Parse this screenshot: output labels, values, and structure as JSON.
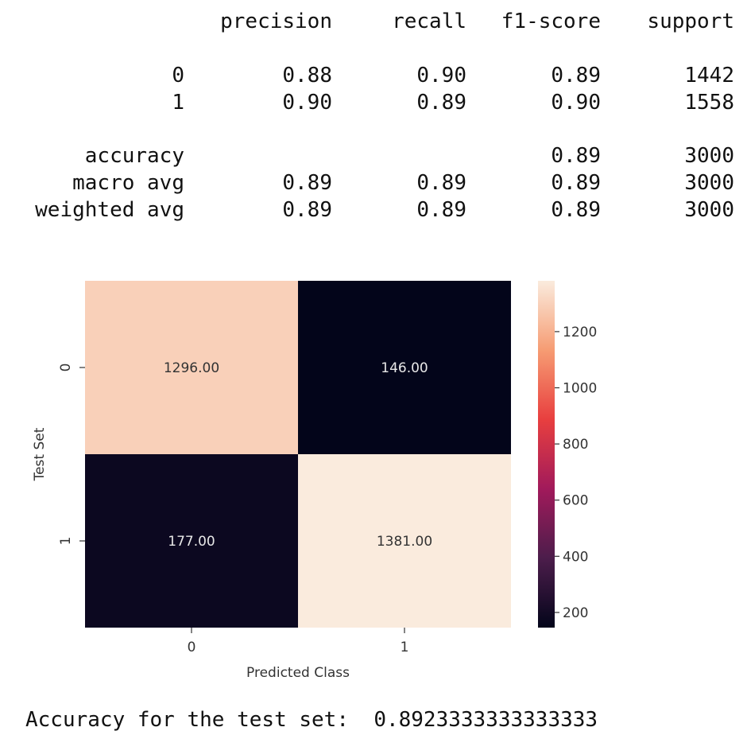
{
  "report": {
    "headers": [
      "precision",
      "recall",
      "f1-score",
      "support"
    ],
    "rows": [
      {
        "label": "0",
        "values": [
          "0.88",
          "0.90",
          "0.89",
          "1442"
        ]
      },
      {
        "label": "1",
        "values": [
          "0.90",
          "0.89",
          "0.90",
          "1558"
        ]
      },
      {
        "label": "accuracy",
        "values": [
          "",
          "",
          "0.89",
          "3000"
        ]
      },
      {
        "label": "macro avg",
        "values": [
          "0.89",
          "0.89",
          "0.89",
          "3000"
        ]
      },
      {
        "label": "weighted avg",
        "values": [
          "0.89",
          "0.89",
          "0.89",
          "3000"
        ]
      }
    ]
  },
  "accuracy_line": {
    "label": "Accuracy for the test set:",
    "value": "0.8923333333333333"
  },
  "chart_data": {
    "type": "heatmap",
    "xlabel": "Predicted Class",
    "ylabel": "Test Set",
    "x_categories": [
      "0",
      "1"
    ],
    "y_categories": [
      "0",
      "1"
    ],
    "matrix": [
      [
        1296,
        146
      ],
      [
        177,
        1381
      ]
    ],
    "cell_labels": [
      [
        "1296.00",
        "146.00"
      ],
      [
        "177.00",
        "1381.00"
      ]
    ],
    "colorbar": {
      "min": 146,
      "max": 1381,
      "ticks": [
        200,
        400,
        600,
        800,
        1000,
        1200
      ]
    },
    "colormap": [
      "#03051a",
      "#4c1d4b",
      "#a11a5b",
      "#e83f3f",
      "#f69c73",
      "#faebdd"
    ]
  }
}
